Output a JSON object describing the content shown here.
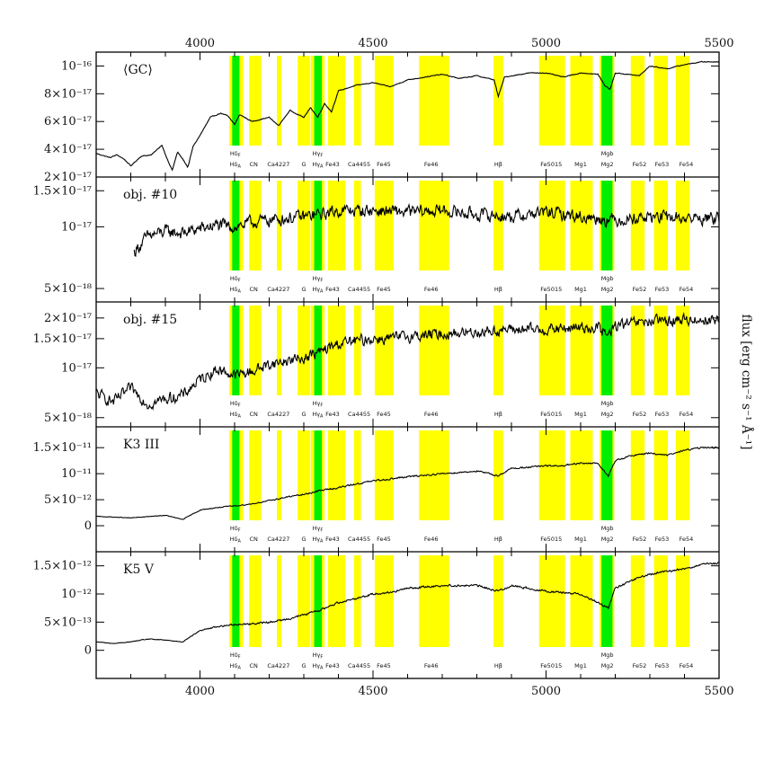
{
  "chart_data": {
    "type": "line",
    "xlim": [
      3700,
      5500
    ],
    "x_ticks": [
      4000,
      4500,
      5000,
      5500
    ],
    "x_tick_labels": [
      "4000",
      "4500",
      "5000",
      "5500"
    ],
    "ylabel": "flux [erg cm⁻² s⁻¹ Å⁻¹]",
    "band_label_rows": {
      "upper": [
        {
          "text": "Hδ_F",
          "x": 4102
        },
        {
          "text": "Hγ_F",
          "x": 4340
        },
        {
          "text": "Mgb",
          "x": 5177
        }
      ],
      "lower": [
        {
          "text": "Hδ_A",
          "x": 4102
        },
        {
          "text": "CN",
          "x": 4155
        },
        {
          "text": "Ca4227",
          "x": 4227
        },
        {
          "text": "G",
          "x": 4300
        },
        {
          "text": "Hγ_A",
          "x": 4340
        },
        {
          "text": "Fe43",
          "x": 4383
        },
        {
          "text": "Ca4455",
          "x": 4460
        },
        {
          "text": "Fe45",
          "x": 4531
        },
        {
          "text": "Fe46",
          "x": 4668
        },
        {
          "text": "Hβ",
          "x": 4862
        },
        {
          "text": "Fe5015",
          "x": 5015
        },
        {
          "text": "Mg1",
          "x": 5100
        },
        {
          "text": "Mg2",
          "x": 5177
        },
        {
          "text": "Fe52",
          "x": 5270
        },
        {
          "text": "Fe53",
          "x": 5335
        },
        {
          "text": "Fe54",
          "x": 5405
        }
      ]
    },
    "yellow_bands": [
      [
        4085,
        4125
      ],
      [
        4142,
        4177
      ],
      [
        4222,
        4235
      ],
      [
        4282,
        4318
      ],
      [
        4320,
        4360
      ],
      [
        4370,
        4420
      ],
      [
        4445,
        4465
      ],
      [
        4505,
        4560
      ],
      [
        4633,
        4720
      ],
      [
        4848,
        4876
      ],
      [
        4980,
        5055
      ],
      [
        5070,
        5135
      ],
      [
        5155,
        5197
      ],
      [
        5245,
        5285
      ],
      [
        5312,
        5352
      ],
      [
        5375,
        5415
      ]
    ],
    "green_bands": [
      [
        4093,
        4114
      ],
      [
        4330,
        4352
      ],
      [
        5160,
        5192
      ]
    ],
    "colors": {
      "yellow_band": "#ffff00",
      "green_band": "#00ee00",
      "line": "#000000",
      "frame": "#000000"
    },
    "panels": [
      {
        "label": "⟨GC⟩",
        "yscale": "linear",
        "ylim": [
          2e-17,
          1.1e-16
        ],
        "y_ticks": [
          2e-17,
          4e-17,
          6e-17,
          8e-17,
          1e-16
        ],
        "y_tick_labels": [
          "2×10⁻¹⁷",
          "4×10⁻¹⁷",
          "6×10⁻¹⁷",
          "8×10⁻¹⁷",
          "10⁻¹⁶"
        ],
        "x_start": 3700,
        "noise": 0.01,
        "knots": [
          [
            3700,
            3.7e-17
          ],
          [
            3740,
            3.4e-17
          ],
          [
            3760,
            3.6e-17
          ],
          [
            3780,
            3.3e-17
          ],
          [
            3800,
            2.8e-17
          ],
          [
            3830,
            3.5e-17
          ],
          [
            3860,
            3.6e-17
          ],
          [
            3890,
            4.3e-17
          ],
          [
            3910,
            3e-17
          ],
          [
            3920,
            2.5e-17
          ],
          [
            3935,
            3.8e-17
          ],
          [
            3950,
            3.3e-17
          ],
          [
            3965,
            2.7e-17
          ],
          [
            3980,
            4.2e-17
          ],
          [
            4000,
            5e-17
          ],
          [
            4030,
            6.3e-17
          ],
          [
            4060,
            6.6e-17
          ],
          [
            4080,
            6.4e-17
          ],
          [
            4100,
            5.8e-17
          ],
          [
            4115,
            6.5e-17
          ],
          [
            4150,
            6e-17
          ],
          [
            4200,
            6.3e-17
          ],
          [
            4227,
            5.7e-17
          ],
          [
            4260,
            6.8e-17
          ],
          [
            4300,
            6.3e-17
          ],
          [
            4320,
            7e-17
          ],
          [
            4340,
            6.3e-17
          ],
          [
            4360,
            7.3e-17
          ],
          [
            4380,
            6.7e-17
          ],
          [
            4400,
            8.2e-17
          ],
          [
            4450,
            8.6e-17
          ],
          [
            4500,
            8.8e-17
          ],
          [
            4550,
            8.5e-17
          ],
          [
            4600,
            9e-17
          ],
          [
            4650,
            9.2e-17
          ],
          [
            4700,
            9.4e-17
          ],
          [
            4750,
            9.1e-17
          ],
          [
            4800,
            9.3e-17
          ],
          [
            4850,
            9e-17
          ],
          [
            4862,
            7.8e-17
          ],
          [
            4880,
            9.2e-17
          ],
          [
            4950,
            9.5e-17
          ],
          [
            5000,
            9.5e-17
          ],
          [
            5050,
            9.2e-17
          ],
          [
            5100,
            9.5e-17
          ],
          [
            5150,
            9.4e-17
          ],
          [
            5170,
            8.6e-17
          ],
          [
            5185,
            8.3e-17
          ],
          [
            5200,
            9.5e-17
          ],
          [
            5270,
            9.3e-17
          ],
          [
            5300,
            1e-16
          ],
          [
            5350,
            9.8e-17
          ],
          [
            5400,
            1.01e-16
          ],
          [
            5450,
            1.03e-16
          ],
          [
            5500,
            1.03e-16
          ]
        ]
      },
      {
        "label": "obj. #10",
        "yscale": "log",
        "ylim": [
          4.3e-18,
          1.75e-17
        ],
        "y_ticks": [
          5e-18,
          1e-17,
          1.5e-17
        ],
        "y_tick_labels": [
          "5×10⁻¹⁸",
          "10⁻¹⁷",
          "1.5×10⁻¹⁷"
        ],
        "x_start": 3810,
        "noise": 0.11,
        "knots": [
          [
            3810,
            7.5e-18
          ],
          [
            3850,
            9e-18
          ],
          [
            3900,
            9.5e-18
          ],
          [
            3950,
            9.3e-18
          ],
          [
            4000,
            9.8e-18
          ],
          [
            4050,
            1.02e-17
          ],
          [
            4100,
            1e-17
          ],
          [
            4150,
            1.05e-17
          ],
          [
            4200,
            1.08e-17
          ],
          [
            4250,
            1.1e-17
          ],
          [
            4300,
            1.12e-17
          ],
          [
            4350,
            1.15e-17
          ],
          [
            4400,
            1.2e-17
          ],
          [
            4500,
            1.2e-17
          ],
          [
            4600,
            1.18e-17
          ],
          [
            4700,
            1.2e-17
          ],
          [
            4800,
            1.15e-17
          ],
          [
            4900,
            1.12e-17
          ],
          [
            5000,
            1.18e-17
          ],
          [
            5100,
            1.12e-17
          ],
          [
            5200,
            1.08e-17
          ],
          [
            5300,
            1.12e-17
          ],
          [
            5400,
            1.1e-17
          ],
          [
            5500,
            1.1e-17
          ]
        ]
      },
      {
        "label": "obj. #15",
        "yscale": "log",
        "ylim": [
          4.4e-18,
          2.5e-17
        ],
        "y_ticks": [
          5e-18,
          1e-17,
          1.5e-17,
          2e-17
        ],
        "y_tick_labels": [
          "5×10⁻¹⁸",
          "10⁻¹⁷",
          "1.5×10⁻¹⁷",
          "2×10⁻¹⁷"
        ],
        "x_start": 3700,
        "noise": 0.12,
        "knots": [
          [
            3700,
            7e-18
          ],
          [
            3750,
            6.2e-18
          ],
          [
            3800,
            7.5e-18
          ],
          [
            3850,
            6e-18
          ],
          [
            3900,
            6.5e-18
          ],
          [
            3950,
            6.8e-18
          ],
          [
            4000,
            8.5e-18
          ],
          [
            4050,
            9.8e-18
          ],
          [
            4100,
            9e-18
          ],
          [
            4150,
            9.5e-18
          ],
          [
            4200,
            1.05e-17
          ],
          [
            4250,
            1.1e-17
          ],
          [
            4300,
            1.15e-17
          ],
          [
            4350,
            1.25e-17
          ],
          [
            4400,
            1.4e-17
          ],
          [
            4450,
            1.45e-17
          ],
          [
            4500,
            1.5e-17
          ],
          [
            4550,
            1.5e-17
          ],
          [
            4600,
            1.55e-17
          ],
          [
            4700,
            1.6e-17
          ],
          [
            4800,
            1.65e-17
          ],
          [
            4900,
            1.7e-17
          ],
          [
            5000,
            1.7e-17
          ],
          [
            5100,
            1.75e-17
          ],
          [
            5150,
            1.75e-17
          ],
          [
            5180,
            1.55e-17
          ],
          [
            5200,
            1.8e-17
          ],
          [
            5300,
            1.9e-17
          ],
          [
            5400,
            1.95e-17
          ],
          [
            5500,
            1.95e-17
          ]
        ]
      },
      {
        "label": "K3 III",
        "yscale": "linear",
        "ylim": [
          -5e-12,
          1.9e-11
        ],
        "y_ticks": [
          0,
          5e-12,
          1e-11,
          1.5e-11
        ],
        "y_tick_labels": [
          "0",
          "5×10⁻¹²",
          "10⁻¹¹",
          "1.5×10⁻¹¹"
        ],
        "x_start": 3700,
        "noise": 0.02,
        "knots": [
          [
            3700,
            1.8e-12
          ],
          [
            3800,
            1.5e-12
          ],
          [
            3900,
            2e-12
          ],
          [
            3950,
            1.2e-12
          ],
          [
            4000,
            3e-12
          ],
          [
            4050,
            3.5e-12
          ],
          [
            4100,
            3.8e-12
          ],
          [
            4150,
            4.2e-12
          ],
          [
            4200,
            4.8e-12
          ],
          [
            4250,
            5.5e-12
          ],
          [
            4300,
            6e-12
          ],
          [
            4350,
            6.8e-12
          ],
          [
            4400,
            7.3e-12
          ],
          [
            4450,
            8e-12
          ],
          [
            4500,
            8.6e-12
          ],
          [
            4550,
            9e-12
          ],
          [
            4600,
            9.4e-12
          ],
          [
            4700,
            1e-11
          ],
          [
            4800,
            1.05e-11
          ],
          [
            4862,
            9.6e-12
          ],
          [
            4900,
            1.1e-11
          ],
          [
            5000,
            1.15e-11
          ],
          [
            5050,
            1.15e-11
          ],
          [
            5100,
            1.2e-11
          ],
          [
            5150,
            1.2e-11
          ],
          [
            5180,
            9.5e-12
          ],
          [
            5200,
            1.25e-11
          ],
          [
            5250,
            1.35e-11
          ],
          [
            5300,
            1.4e-11
          ],
          [
            5350,
            1.35e-11
          ],
          [
            5400,
            1.45e-11
          ],
          [
            5450,
            1.5e-11
          ],
          [
            5500,
            1.5e-11
          ]
        ]
      },
      {
        "label": "K5 V",
        "yscale": "linear",
        "ylim": [
          -5e-13,
          1.75e-12
        ],
        "y_ticks": [
          0,
          5e-13,
          1e-12,
          1.5e-12
        ],
        "y_tick_labels": [
          "0",
          "5×10⁻¹³",
          "10⁻¹²",
          "1.5×10⁻¹²"
        ],
        "x_start": 3700,
        "noise": 0.025,
        "knots": [
          [
            3700,
            1.5e-13
          ],
          [
            3750,
            1.2e-13
          ],
          [
            3800,
            1.5e-13
          ],
          [
            3850,
            2e-13
          ],
          [
            3900,
            1.8e-13
          ],
          [
            3950,
            1.5e-13
          ],
          [
            4000,
            3.5e-13
          ],
          [
            4050,
            4.2e-13
          ],
          [
            4100,
            4.6e-13
          ],
          [
            4150,
            4.7e-13
          ],
          [
            4200,
            5e-13
          ],
          [
            4250,
            5.5e-13
          ],
          [
            4300,
            6.3e-13
          ],
          [
            4350,
            7.2e-13
          ],
          [
            4400,
            8.5e-13
          ],
          [
            4450,
            9.2e-13
          ],
          [
            4500,
            1e-12
          ],
          [
            4550,
            1.03e-12
          ],
          [
            4600,
            1.1e-12
          ],
          [
            4700,
            1.15e-12
          ],
          [
            4800,
            1.15e-12
          ],
          [
            4862,
            1.05e-12
          ],
          [
            4900,
            1.15e-12
          ],
          [
            5000,
            1.05e-12
          ],
          [
            5100,
            1e-12
          ],
          [
            5180,
            7.5e-13
          ],
          [
            5200,
            1.1e-12
          ],
          [
            5250,
            1.25e-12
          ],
          [
            5300,
            1.35e-12
          ],
          [
            5350,
            1.4e-12
          ],
          [
            5400,
            1.45e-12
          ],
          [
            5450,
            1.52e-12
          ],
          [
            5500,
            1.55e-12
          ]
        ]
      }
    ]
  }
}
